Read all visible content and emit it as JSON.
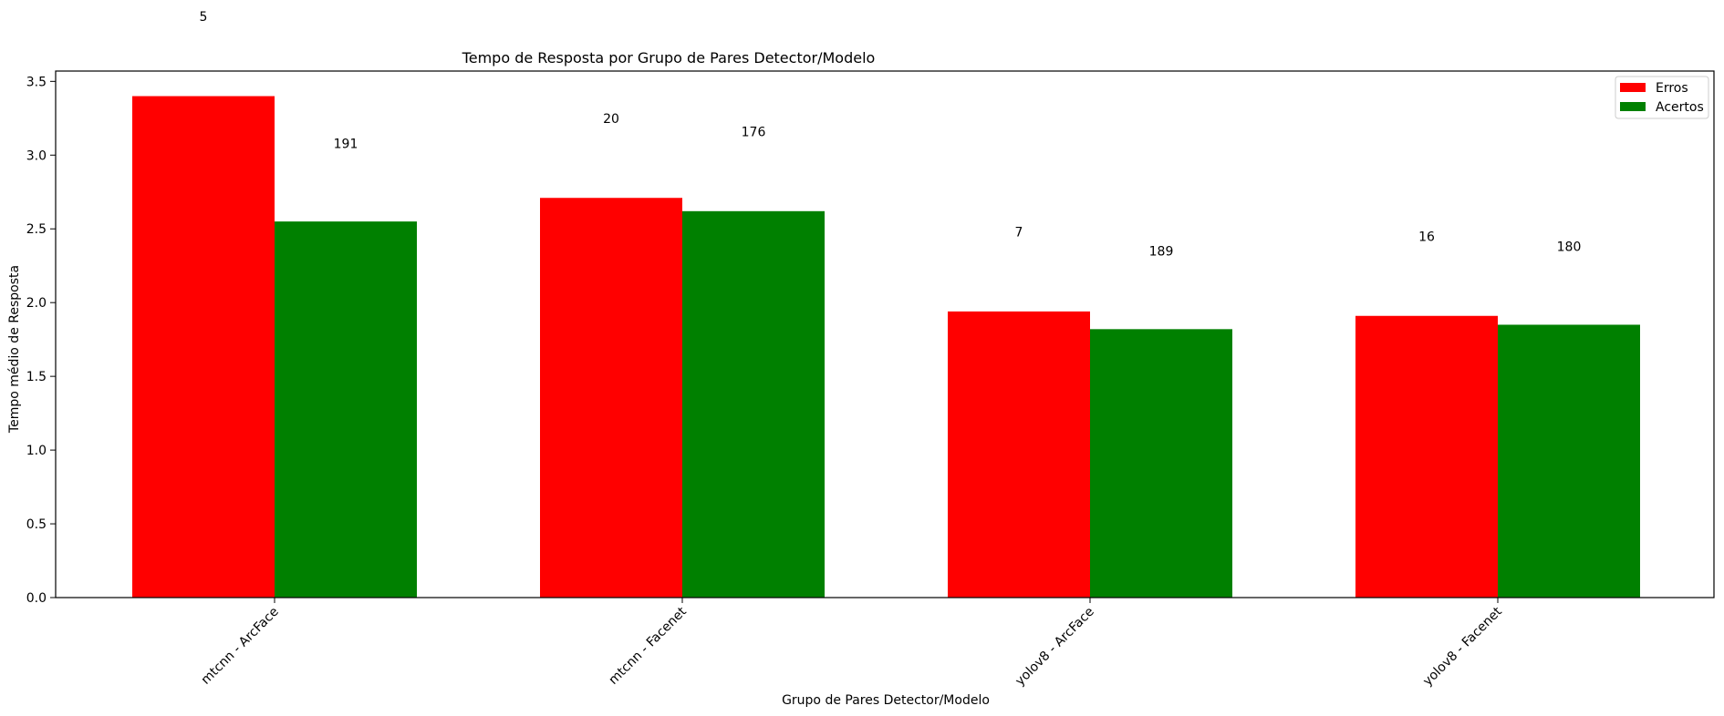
{
  "chart_data": {
    "type": "bar",
    "title": "Tempo de Resposta por Grupo de Pares Detector/Modelo",
    "xlabel": "Grupo de Pares Detector/Modelo",
    "ylabel": "Tempo médio de Resposta",
    "categories": [
      "mtcnn - ArcFace",
      "mtcnn - Facenet",
      "yolov8 - ArcFace",
      "yolov8 - Facenet"
    ],
    "series": [
      {
        "name": "Erros",
        "color": "#ff0000",
        "values": [
          3.4,
          2.71,
          1.94,
          1.91
        ],
        "count_labels": [
          "5",
          "20",
          "7",
          "16"
        ]
      },
      {
        "name": "Acertos",
        "color": "#008000",
        "values": [
          2.55,
          2.62,
          1.82,
          1.85
        ],
        "count_labels": [
          "191",
          "176",
          "189",
          "180"
        ]
      }
    ],
    "count_label_values": [
      [
        3.94,
        3.25,
        2.48,
        2.45
      ],
      [
        3.08,
        3.16,
        2.35,
        2.38
      ]
    ],
    "ylim": [
      0,
      3.57
    ],
    "yticks": [
      "0.0",
      "0.5",
      "1.0",
      "1.5",
      "2.0",
      "2.5",
      "3.0",
      "3.5"
    ],
    "legend_position": "top-right",
    "grid": false
  }
}
